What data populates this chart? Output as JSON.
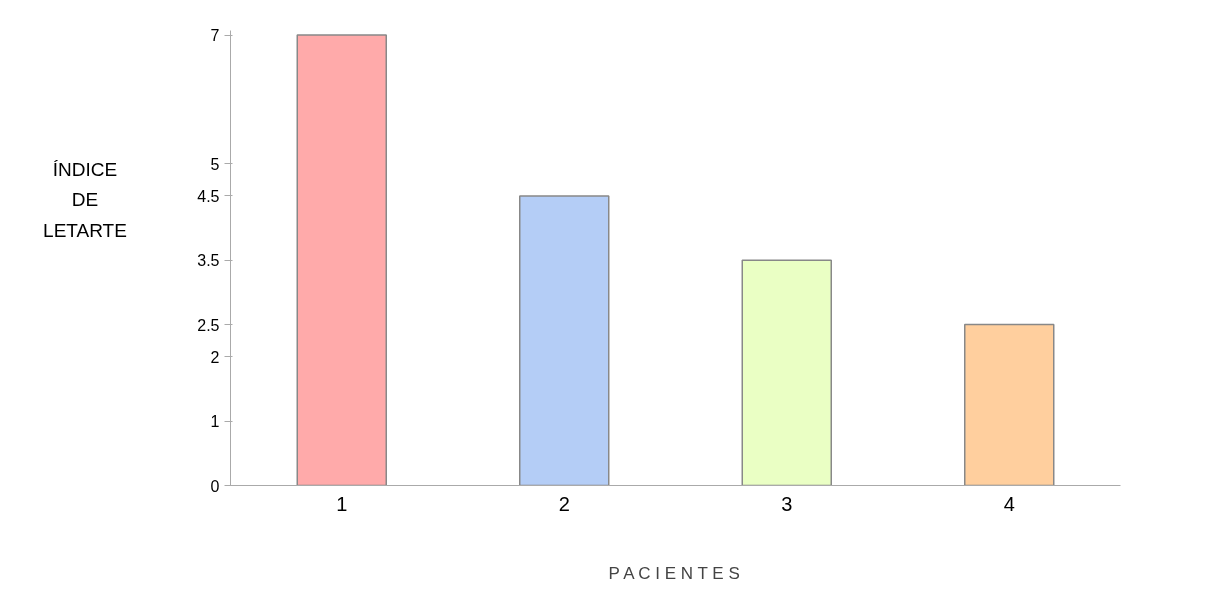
{
  "chart_data": {
    "type": "bar",
    "xlabel": "P A C I E N T E S",
    "ylabel": "ÍNDICE DE LETARTE",
    "categories": [
      "1",
      "2",
      "3",
      "4"
    ],
    "values": [
      7,
      4.5,
      3.5,
      2.5
    ],
    "colors": [
      "#ffaaaa",
      "#b4cdf6",
      "#eaffc4",
      "#ffcf9e"
    ],
    "ylim": [
      0,
      7
    ],
    "yticks": [
      0,
      1,
      2,
      2.5,
      3.5,
      4.5,
      5,
      7
    ],
    "grid": false
  }
}
